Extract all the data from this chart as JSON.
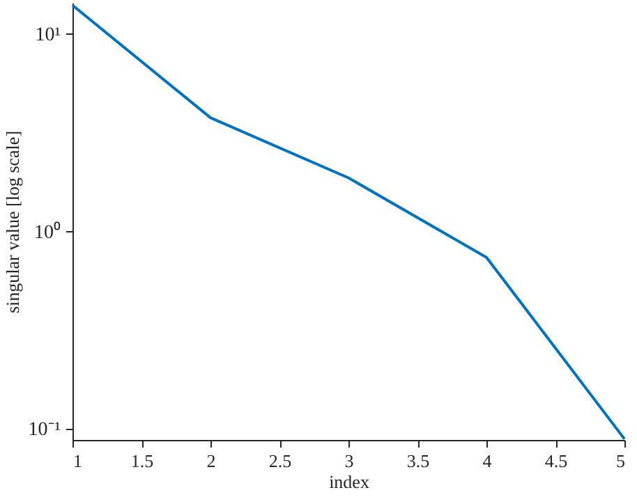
{
  "chart_data": {
    "type": "line",
    "xlabel": "index",
    "ylabel": "singular value [log scale]",
    "log": true,
    "grid": false,
    "marker": "none",
    "line_style": "solid",
    "x": [
      1,
      2,
      3,
      4,
      5
    ],
    "series": [
      {
        "color": "#0072bd",
        "values": [
          14,
          3.77,
          1.87,
          0.74,
          0.089
        ]
      }
    ],
    "xlim": [
      1,
      5
    ],
    "xticks": [
      1,
      1.5,
      2,
      2.5,
      3,
      3.5,
      4,
      4.5,
      5
    ],
    "ylim": [
      0.088,
      14.4
    ],
    "yticks": [
      {
        "value": 0.1,
        "label": "10⁻¹"
      },
      {
        "value": 1,
        "label": "10⁰"
      },
      {
        "value": 10,
        "label": "10¹"
      }
    ]
  }
}
